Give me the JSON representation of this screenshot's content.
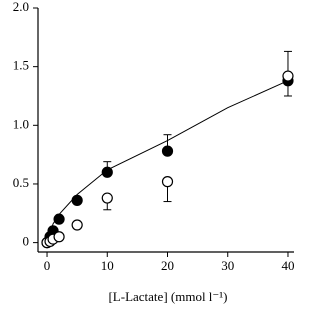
{
  "chart_data": {
    "type": "scatter",
    "x_label": "[L-Lactate] (mmol l⁻¹)",
    "x": [
      0,
      0.5,
      1,
      2,
      5,
      10,
      20,
      40
    ],
    "series": [
      {
        "color": "#000000",
        "marker": "filled",
        "values": [
          0,
          0.05,
          0.1,
          0.2,
          0.36,
          0.6,
          0.78,
          1.38
        ],
        "errors": [
          null,
          null,
          null,
          null,
          null,
          0.09,
          0.14,
          0.13
        ]
      },
      {
        "color": "#000000",
        "marker": "open",
        "values": [
          0,
          0.01,
          0.03,
          0.05,
          0.15,
          0.38,
          0.52,
          1.42
        ],
        "errors": [
          null,
          null,
          null,
          null,
          null,
          0.1,
          0.17,
          0.21
        ]
      }
    ],
    "fit": {
      "x": [
        0,
        1,
        2,
        5,
        10,
        20,
        30,
        40
      ],
      "values": [
        0,
        0.16,
        0.24,
        0.41,
        0.62,
        0.87,
        1.15,
        1.38
      ],
      "color": "#000000"
    },
    "xlim": [
      -1.5,
      41
    ],
    "ylim": [
      -0.08,
      2.0
    ],
    "xticks": [
      0,
      10,
      20,
      30,
      40
    ],
    "yticks": [
      0,
      0.5,
      {
        "value": 1,
        "label": "1.0"
      },
      1.5,
      {
        "value": 2,
        "label": "2.0"
      }
    ]
  }
}
